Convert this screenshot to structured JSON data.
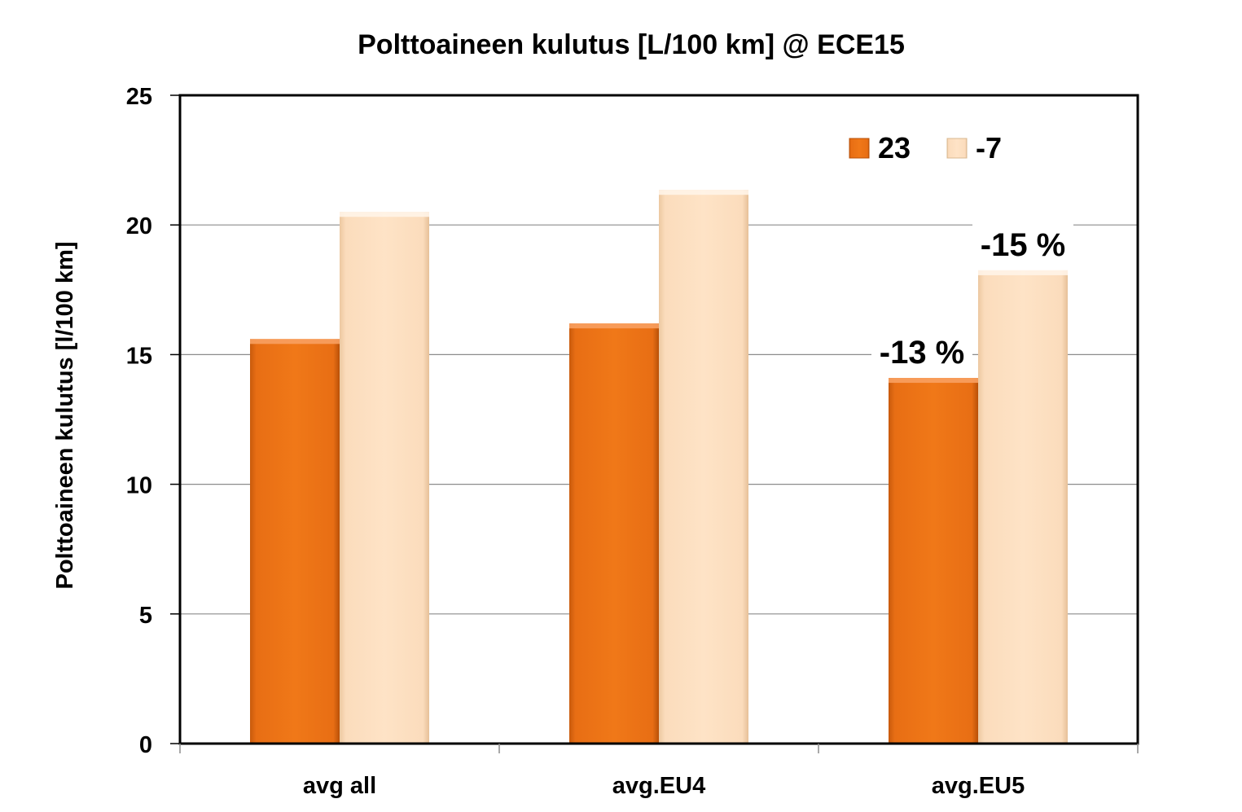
{
  "chart_data": {
    "type": "bar",
    "title": "Polttoaineen kulutus [L/100 km] @ ECE15",
    "xlabel": "",
    "ylabel": "Polttoaineen kulutus  [l/100 km]",
    "ylim": [
      0,
      25
    ],
    "yticks": [
      "0",
      "5",
      "10",
      "15",
      "20",
      "25"
    ],
    "grid": "horizontal",
    "legend_position": "top-right",
    "categories": [
      "avg all",
      "avg.EU4",
      "avg.EU5"
    ],
    "series": [
      {
        "name": "23",
        "values": [
          15.6,
          16.2,
          14.1
        ],
        "color": "#f07818"
      },
      {
        "name": "-7",
        "values": [
          20.5,
          21.35,
          18.25
        ],
        "color": "#fde0c0"
      }
    ],
    "annotations": [
      {
        "text": "-13 %",
        "category": "avg.EU5",
        "series": "23"
      },
      {
        "text": "-15 %",
        "category": "avg.EU5",
        "series": "-7"
      }
    ]
  }
}
